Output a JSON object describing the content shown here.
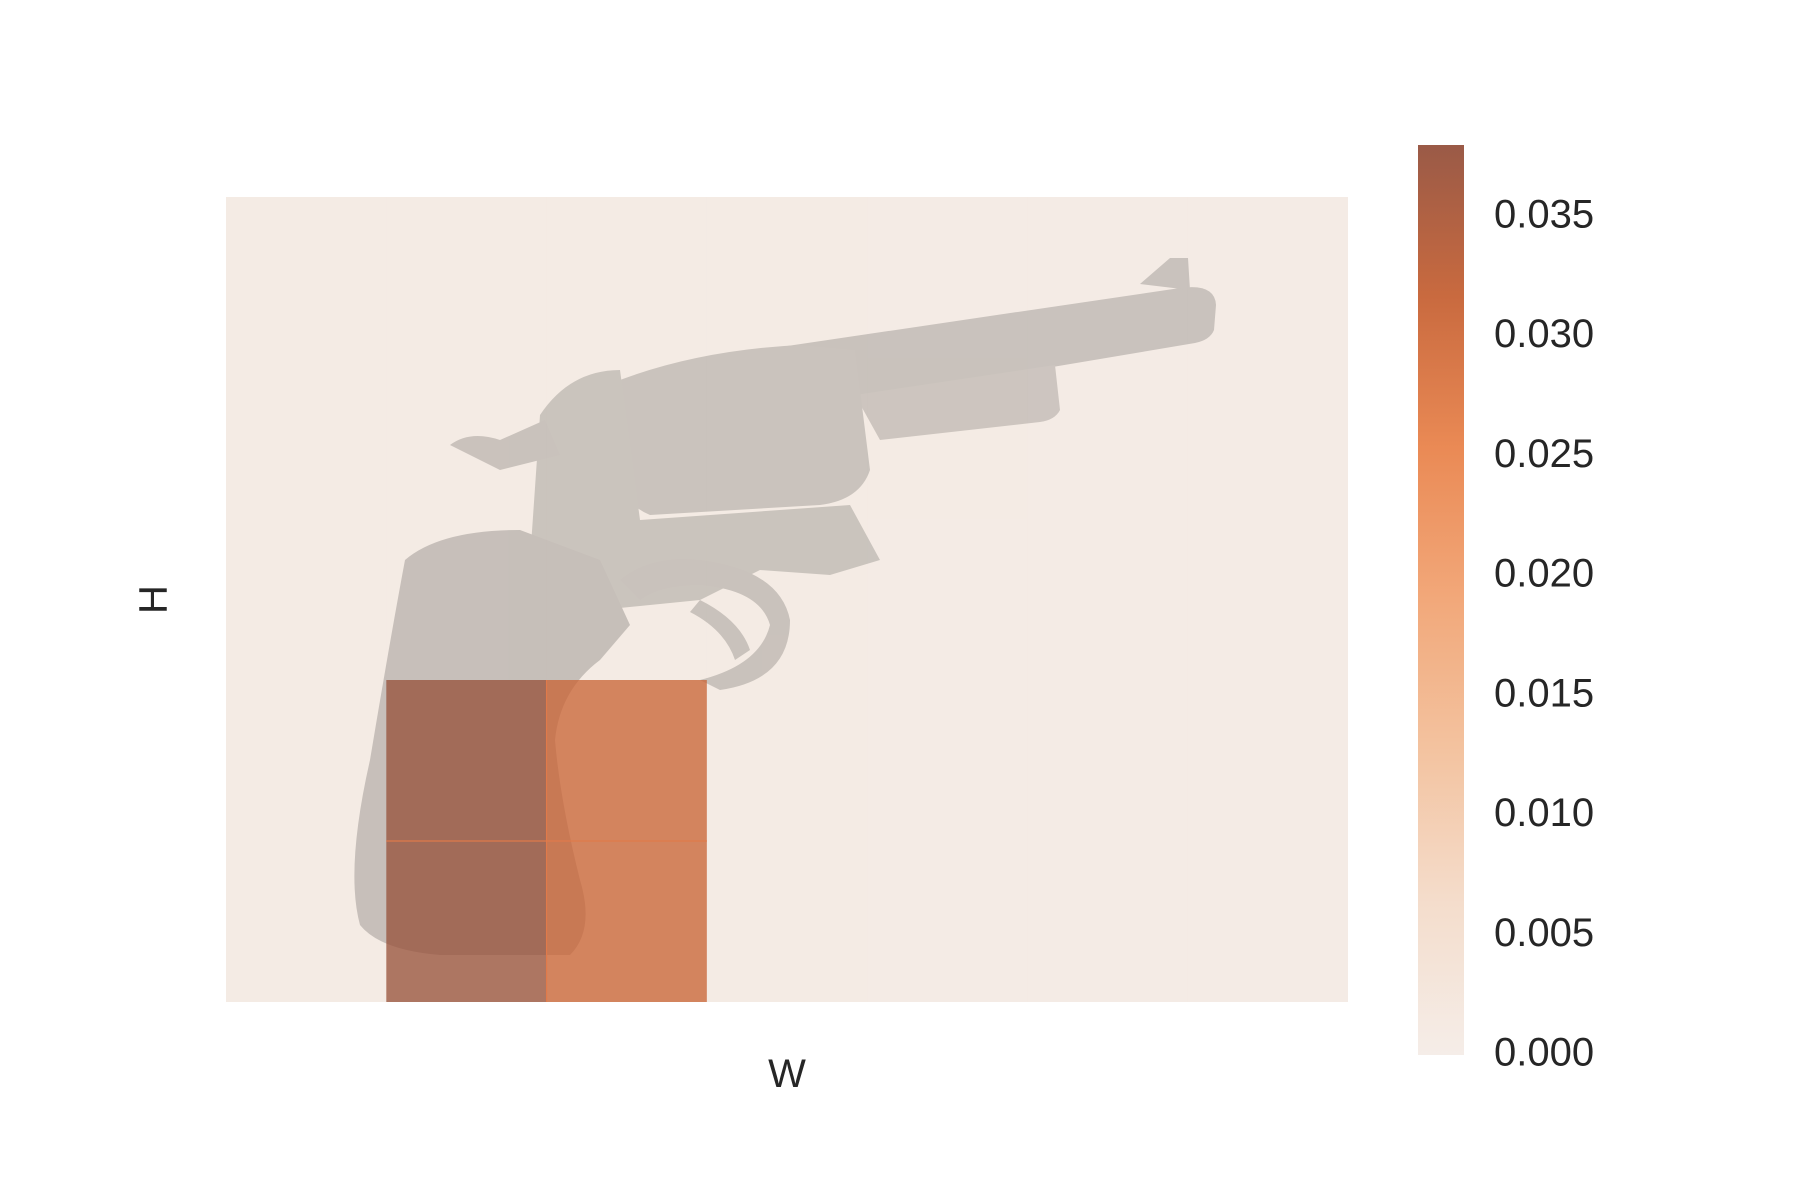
{
  "chart_data": {
    "type": "heatmap",
    "title": "",
    "xlabel": "W",
    "ylabel": "H",
    "grid_rows": 5,
    "grid_cols": 7,
    "cells": [
      {
        "row": 3,
        "col": 1,
        "value": 0.0375
      },
      {
        "row": 3,
        "col": 2,
        "value": 0.031
      },
      {
        "row": 4,
        "col": 1,
        "value": 0.0375
      },
      {
        "row": 4,
        "col": 2,
        "value": 0.031
      },
      {
        "row": 0,
        "col": 0,
        "value": 0.0007
      },
      {
        "row": 0,
        "col": 1,
        "value": 0.0008
      },
      {
        "row": 0,
        "col": 2,
        "value": 0.0008
      },
      {
        "row": 0,
        "col": 3,
        "value": 0.0007
      },
      {
        "row": 0,
        "col": 4,
        "value": 0.0005
      },
      {
        "row": 0,
        "col": 5,
        "value": 0.0004
      },
      {
        "row": 0,
        "col": 6,
        "value": 0.0004
      },
      {
        "row": 1,
        "col": 0,
        "value": 0.0008
      },
      {
        "row": 1,
        "col": 1,
        "value": 0.0012
      },
      {
        "row": 1,
        "col": 2,
        "value": 0.0012
      },
      {
        "row": 1,
        "col": 3,
        "value": 0.001
      },
      {
        "row": 1,
        "col": 4,
        "value": 0.0006
      },
      {
        "row": 1,
        "col": 5,
        "value": 0.0004
      },
      {
        "row": 1,
        "col": 6,
        "value": 0.0004
      },
      {
        "row": 2,
        "col": 0,
        "value": 0.0008
      },
      {
        "row": 2,
        "col": 1,
        "value": 0.0013
      },
      {
        "row": 2,
        "col": 2,
        "value": 0.0012
      },
      {
        "row": 2,
        "col": 3,
        "value": 0.001
      },
      {
        "row": 2,
        "col": 4,
        "value": 0.0005
      },
      {
        "row": 2,
        "col": 5,
        "value": 0.0004
      },
      {
        "row": 2,
        "col": 6,
        "value": 0.0004
      },
      {
        "row": 3,
        "col": 0,
        "value": 0.0007
      },
      {
        "row": 3,
        "col": 3,
        "value": 0.0009
      },
      {
        "row": 3,
        "col": 4,
        "value": 0.0005
      },
      {
        "row": 3,
        "col": 5,
        "value": 0.0004
      },
      {
        "row": 3,
        "col": 6,
        "value": 0.0004
      },
      {
        "row": 4,
        "col": 0,
        "value": 0.0006
      },
      {
        "row": 4,
        "col": 3,
        "value": 0.0006
      },
      {
        "row": 4,
        "col": 4,
        "value": 0.0004
      },
      {
        "row": 4,
        "col": 5,
        "value": 0.0004
      },
      {
        "row": 4,
        "col": 6,
        "value": 0.0004
      }
    ],
    "background_image": "revolver-photo",
    "colorbar": {
      "min": 0.0,
      "max": 0.038,
      "ticks": [
        0.0,
        0.005,
        0.01,
        0.015,
        0.02,
        0.025,
        0.03,
        0.035
      ],
      "tick_labels": [
        "0.000",
        "0.005",
        "0.010",
        "0.015",
        "0.020",
        "0.025",
        "0.030",
        "0.035"
      ],
      "colors": [
        "#f5ede8",
        "#f4ddcc",
        "#f3c3a0",
        "#f2a87a",
        "#ea8a55",
        "#c96a3f",
        "#9a5a47"
      ]
    },
    "grid": false,
    "legend": "colorbar-right"
  }
}
